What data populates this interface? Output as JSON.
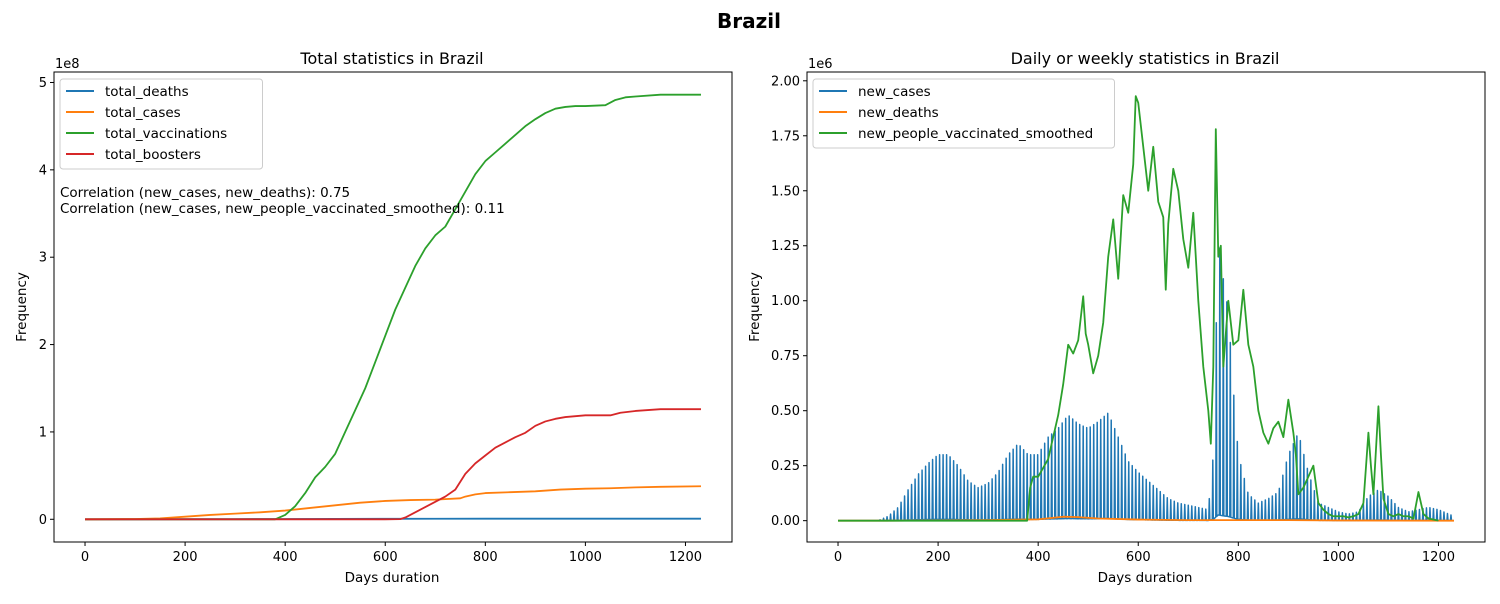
{
  "figure": {
    "title": "Brazil"
  },
  "chart_data": [
    {
      "type": "line",
      "title": "Total statistics in Brazil",
      "xlabel": "Days duration",
      "ylabel": "Frequency",
      "scale_label": "1e8",
      "xlim": [
        -62,
        1293
      ],
      "ylim": [
        -26000000.0,
        512000000.0
      ],
      "xticks": [
        0,
        200,
        400,
        600,
        800,
        1000,
        1200
      ],
      "xtick_labels": [
        "0",
        "200",
        "400",
        "600",
        "800",
        "1000",
        "1200"
      ],
      "yticks": [
        0,
        100000000.0,
        200000000.0,
        300000000.0,
        400000000.0,
        500000000.0
      ],
      "ytick_labels": [
        "0",
        "1",
        "2",
        "3",
        "4",
        "5"
      ],
      "legend_position": "upper-left",
      "annotations": [
        "Correlation (new_cases, new_deaths): 0.75",
        "Correlation (new_cases, new_people_vaccinated_smoothed): 0.11"
      ],
      "series": [
        {
          "name": "total_deaths",
          "color": "#1f77b4",
          "x": [
            0,
            100,
            200,
            300,
            400,
            500,
            600,
            700,
            800,
            900,
            1000,
            1100,
            1231
          ],
          "y": [
            0,
            0,
            100000,
            200000,
            300000,
            400000,
            550000,
            620000,
            660000,
            680000,
            690000,
            700000,
            705000
          ]
        },
        {
          "name": "total_cases",
          "color": "#ff7f0e",
          "x": [
            0,
            100,
            150,
            200,
            250,
            300,
            350,
            400,
            450,
            500,
            550,
            600,
            650,
            700,
            750,
            760,
            780,
            800,
            850,
            900,
            950,
            1000,
            1050,
            1100,
            1150,
            1231
          ],
          "y": [
            0,
            300000,
            1000000,
            3000000,
            5000000,
            6500000,
            8000000,
            10000000,
            13000000,
            16000000,
            19000000,
            21000000,
            22000000,
            22500000,
            24000000,
            26000000,
            28500000,
            30000000,
            31000000,
            32000000,
            34000000,
            35000000,
            35500000,
            36500000,
            37200000,
            37800000
          ]
        },
        {
          "name": "total_vaccinations",
          "color": "#2ca02c",
          "x": [
            0,
            380,
            400,
            420,
            440,
            460,
            480,
            500,
            520,
            540,
            560,
            580,
            600,
            620,
            640,
            660,
            680,
            700,
            720,
            740,
            760,
            780,
            800,
            820,
            840,
            860,
            880,
            900,
            920,
            940,
            960,
            980,
            1000,
            1040,
            1060,
            1080,
            1100,
            1150,
            1231
          ],
          "y": [
            0,
            0,
            5000000,
            15000000,
            30000000,
            48000000,
            60000000,
            75000000,
            100000000,
            125000000,
            150000000,
            180000000,
            210000000,
            240000000,
            265000000,
            290000000,
            310000000,
            325000000,
            335000000,
            355000000,
            375000000,
            395000000,
            410000000,
            420000000,
            430000000,
            440000000,
            450000000,
            458000000,
            465000000,
            470000000,
            472000000,
            473000000,
            473000000,
            474000000,
            480000000,
            483000000,
            484000000,
            486000000,
            486000000
          ]
        },
        {
          "name": "total_boosters",
          "color": "#d62728",
          "x": [
            0,
            600,
            630,
            640,
            660,
            680,
            700,
            720,
            740,
            750,
            760,
            780,
            800,
            820,
            840,
            860,
            880,
            900,
            920,
            940,
            960,
            980,
            1000,
            1050,
            1070,
            1100,
            1150,
            1231
          ],
          "y": [
            0,
            0,
            200000,
            2000000,
            8000000,
            14000000,
            20000000,
            26000000,
            34000000,
            43000000,
            52000000,
            64000000,
            73000000,
            82000000,
            88000000,
            94000000,
            99000000,
            107000000,
            112000000,
            115000000,
            117000000,
            118000000,
            119000000,
            119000000,
            122000000,
            124000000,
            126000000,
            126000000
          ]
        }
      ]
    },
    {
      "type": "line",
      "title": "Daily or weekly statistics in Brazil",
      "xlabel": "Days duration",
      "ylabel": "Frequency",
      "scale_label": "1e6",
      "xlim": [
        -62,
        1293
      ],
      "ylim": [
        -97000,
        2040000
      ],
      "xticks": [
        0,
        200,
        400,
        600,
        800,
        1000,
        1200
      ],
      "xtick_labels": [
        "0",
        "200",
        "400",
        "600",
        "800",
        "1000",
        "1200"
      ],
      "yticks": [
        0,
        250000,
        500000,
        750000,
        1000000,
        1250000,
        1500000,
        1750000,
        2000000
      ],
      "ytick_labels": [
        "0.00",
        "0.25",
        "0.50",
        "0.75",
        "1.00",
        "1.25",
        "1.50",
        "1.75",
        "2.00"
      ],
      "legend_position": "upper-left",
      "series": [
        {
          "name": "new_cases",
          "color": "#1f77b4",
          "style": "weekly-spikes",
          "x": [
            0,
            80,
            100,
            120,
            140,
            160,
            180,
            200,
            220,
            240,
            260,
            280,
            300,
            320,
            340,
            360,
            380,
            400,
            420,
            440,
            460,
            480,
            500,
            520,
            540,
            560,
            580,
            600,
            620,
            640,
            660,
            680,
            700,
            720,
            740,
            750,
            760,
            770,
            780,
            790,
            800,
            820,
            840,
            860,
            880,
            900,
            920,
            940,
            960,
            980,
            1000,
            1020,
            1040,
            1060,
            1080,
            1100,
            1120,
            1140,
            1160,
            1180,
            1200,
            1231
          ],
          "y": [
            0,
            0,
            20000,
            60000,
            140000,
            210000,
            260000,
            300000,
            300000,
            250000,
            180000,
            150000,
            170000,
            220000,
            300000,
            350000,
            300000,
            300000,
            380000,
            420000,
            480000,
            440000,
            420000,
            450000,
            490000,
            380000,
            270000,
            220000,
            180000,
            140000,
            100000,
            80000,
            70000,
            60000,
            50000,
            300000,
            1300000,
            1100000,
            950000,
            600000,
            300000,
            120000,
            80000,
            100000,
            130000,
            300000,
            400000,
            220000,
            80000,
            60000,
            40000,
            30000,
            40000,
            110000,
            140000,
            110000,
            60000,
            40000,
            50000,
            60000,
            50000,
            20000
          ]
        },
        {
          "name": "new_deaths",
          "color": "#ff7f0e",
          "x": [
            0,
            100,
            200,
            300,
            400,
            450,
            480,
            520,
            600,
            700,
            800,
            900,
            1000,
            1100,
            1231
          ],
          "y": [
            0,
            0,
            1500,
            2500,
            6000,
            18000,
            16000,
            10000,
            5000,
            2500,
            2500,
            2500,
            1000,
            500,
            0
          ]
        },
        {
          "name": "new_people_vaccinated_smoothed",
          "color": "#2ca02c",
          "x": [
            0,
            378,
            384,
            390,
            400,
            420,
            440,
            450,
            460,
            470,
            480,
            490,
            495,
            500,
            510,
            520,
            530,
            540,
            550,
            560,
            570,
            580,
            590,
            595,
            600,
            610,
            620,
            630,
            640,
            650,
            655,
            660,
            670,
            680,
            690,
            700,
            710,
            720,
            730,
            740,
            745,
            750,
            755,
            760,
            765,
            770,
            780,
            790,
            800,
            810,
            820,
            830,
            840,
            850,
            860,
            870,
            880,
            890,
            900,
            910,
            915,
            920,
            930,
            940,
            950,
            960,
            970,
            980,
            990,
            1000,
            1010,
            1020,
            1030,
            1040,
            1050,
            1060,
            1065,
            1070,
            1080,
            1085,
            1090,
            1100,
            1110,
            1120,
            1130,
            1140,
            1150,
            1160,
            1170,
            1180,
            1200
          ],
          "y": [
            0,
            0,
            150000,
            200000,
            200000,
            280000,
            480000,
            620000,
            800000,
            760000,
            820000,
            1020000,
            850000,
            800000,
            670000,
            750000,
            900000,
            1200000,
            1370000,
            1100000,
            1480000,
            1400000,
            1620000,
            1930000,
            1900000,
            1700000,
            1500000,
            1700000,
            1450000,
            1380000,
            1050000,
            1350000,
            1600000,
            1500000,
            1280000,
            1150000,
            1400000,
            1000000,
            700000,
            500000,
            350000,
            700000,
            1780000,
            1200000,
            1250000,
            700000,
            1000000,
            800000,
            820000,
            1050000,
            800000,
            700000,
            500000,
            400000,
            350000,
            420000,
            450000,
            380000,
            550000,
            400000,
            300000,
            120000,
            150000,
            200000,
            250000,
            80000,
            50000,
            30000,
            20000,
            20000,
            20000,
            15000,
            20000,
            30000,
            80000,
            400000,
            250000,
            120000,
            520000,
            300000,
            100000,
            30000,
            20000,
            30000,
            20000,
            20000,
            10000,
            130000,
            30000,
            10000,
            0
          ]
        }
      ]
    }
  ]
}
